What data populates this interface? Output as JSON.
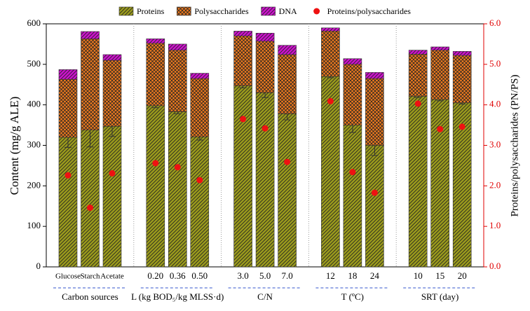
{
  "chart_data": {
    "type": "stacked-bar",
    "ylabel": "Content (mg/g ALE)",
    "y2label": "Proteins/polysaccharides (PN/PS)",
    "categories": [
      "Glucose",
      "Starch",
      "Acetate",
      "0.20",
      "0.36",
      "0.50",
      "3.0",
      "5.0",
      "7.0",
      "12",
      "18",
      "24",
      "10",
      "15",
      "20"
    ],
    "groups": [
      "Carbon sources",
      "L (kg BOD₅/kg MLSS·d)",
      "C/N",
      "T (ºC)",
      "SRT (day)"
    ],
    "series": [
      {
        "name": "Proteins",
        "color": "#9a9a1c",
        "values": [
          320,
          338,
          347,
          398,
          383,
          321,
          447,
          430,
          378,
          470,
          350,
          300,
          421,
          413,
          405
        ],
        "errors": [
          25,
          42,
          25,
          5,
          5,
          8,
          5,
          12,
          15,
          3,
          18,
          25,
          3,
          3,
          3
        ]
      },
      {
        "name": "Polysaccharides",
        "color": "#f07b1e",
        "values": [
          143,
          225,
          163,
          154,
          152,
          144,
          123,
          127,
          146,
          112,
          150,
          165,
          104,
          122,
          117
        ]
      },
      {
        "name": "DNA",
        "color": "#cc11cc",
        "values": [
          24,
          18,
          14,
          11,
          15,
          13,
          12,
          20,
          23,
          8,
          14,
          15,
          10,
          8,
          10
        ]
      },
      {
        "name": "Proteins/polysaccharides",
        "color": "#ee1111",
        "axis": "y2",
        "values": [
          2.26,
          1.46,
          2.31,
          2.56,
          2.46,
          2.14,
          3.65,
          3.42,
          2.59,
          4.09,
          2.34,
          1.83,
          4.03,
          3.4,
          3.46
        ]
      }
    ],
    "ylim": [
      0,
      600
    ],
    "yticks": [
      0,
      100,
      200,
      300,
      400,
      500,
      600
    ],
    "y2lim": [
      0,
      6
    ],
    "y2ticks": [
      {
        "value": 0,
        "label": "0.0"
      },
      {
        "value": 1,
        "label": "1.0"
      },
      {
        "value": 2,
        "label": "2.0"
      },
      {
        "value": 3,
        "label": "3.0"
      },
      {
        "value": 4,
        "label": "4.0"
      },
      {
        "value": 5,
        "label": "5.0"
      },
      {
        "value": 6,
        "label": "6.0"
      }
    ]
  }
}
